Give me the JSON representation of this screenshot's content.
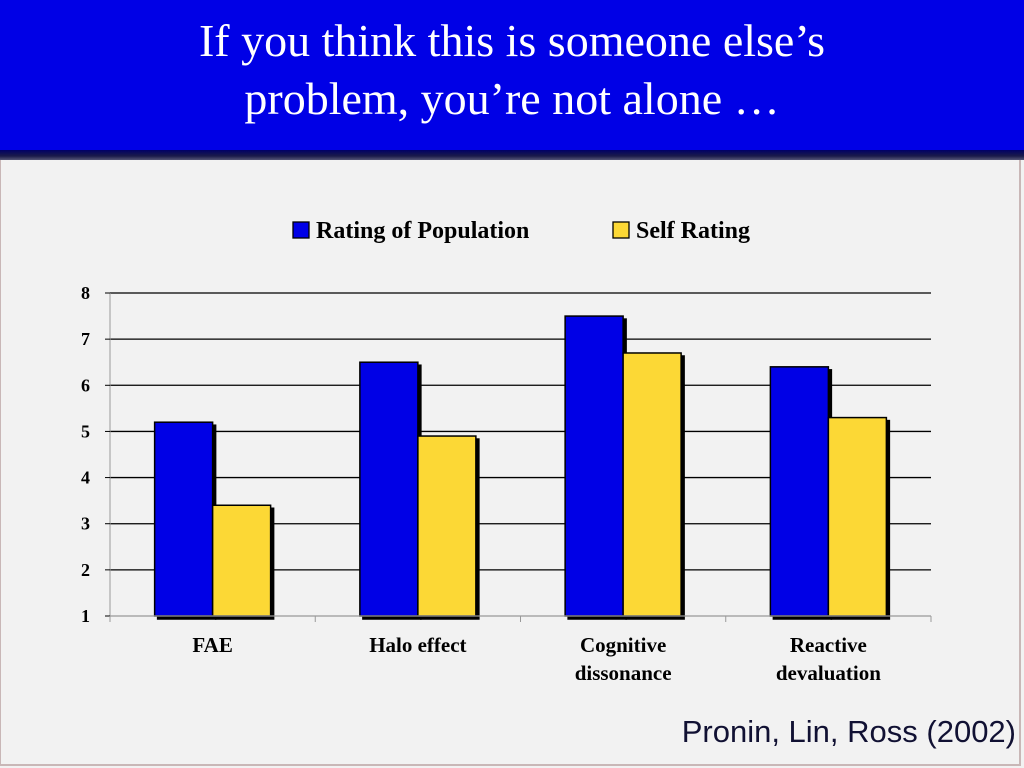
{
  "slide": {
    "title_line1": "If you think this is someone else’s",
    "title_line2": "problem, you’re not alone …",
    "citation": "Pronin, Lin, Ross (2002)",
    "title_bar_color": "#0000e6"
  },
  "chart_data": {
    "type": "bar",
    "categories": [
      [
        "FAE"
      ],
      [
        "Halo effect"
      ],
      [
        "Cognitive",
        "dissonance"
      ],
      [
        "Reactive",
        "devaluation"
      ]
    ],
    "series": [
      {
        "name": "Rating of Population",
        "color": "#0000e6",
        "values": [
          5.2,
          6.5,
          7.5,
          6.4
        ]
      },
      {
        "name": "Self Rating",
        "color": "#fcd835",
        "values": [
          3.4,
          4.9,
          6.7,
          5.3
        ]
      }
    ],
    "yticks": [
      1,
      2,
      3,
      4,
      5,
      6,
      7,
      8
    ],
    "ylim": [
      1,
      8
    ],
    "grid": true,
    "legend_position": "top"
  }
}
